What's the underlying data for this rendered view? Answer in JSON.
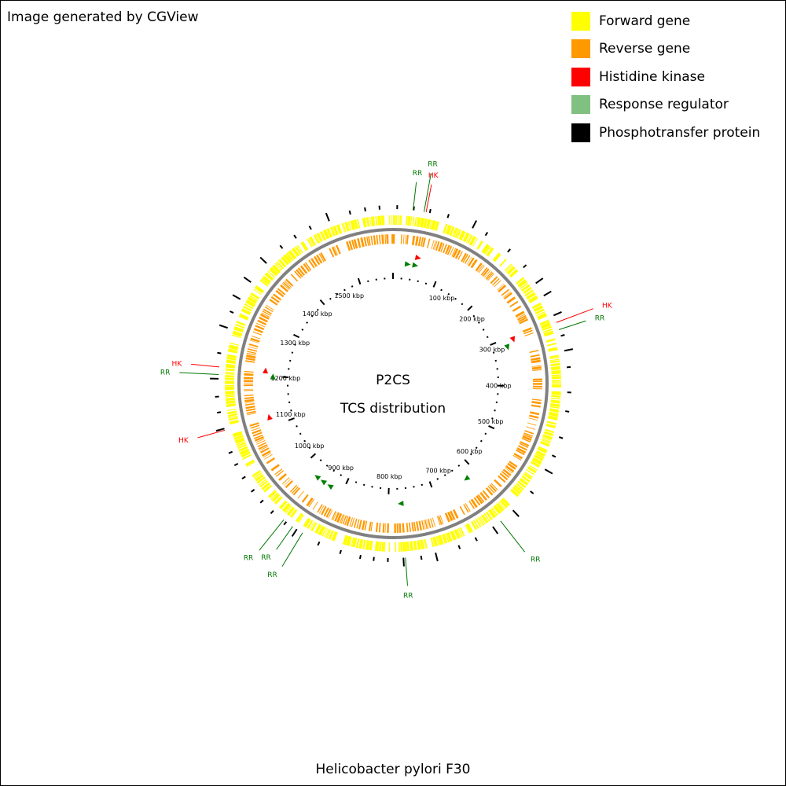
{
  "credit": "Image generated by CGView",
  "legend": [
    {
      "label": "Forward gene",
      "color": "#ffff00"
    },
    {
      "label": "Reverse gene",
      "color": "#ff9900"
    },
    {
      "label": "Histidine kinase",
      "color": "#ff0000"
    },
    {
      "label": "Response regulator",
      "color": "#80c080"
    },
    {
      "label": "Phosphotransfer protein",
      "color": "#000000"
    }
  ],
  "center": {
    "line1": "P2CS",
    "line2": "TCS distribution"
  },
  "organism": "Helicobacter pylori F30",
  "genome_length_kbp": 1580,
  "tick_labels": [
    {
      "kbp": 100,
      "text": "100 kbp"
    },
    {
      "kbp": 200,
      "text": "200 kbp"
    },
    {
      "kbp": 300,
      "text": "300 kbp"
    },
    {
      "kbp": 400,
      "text": "400 kbp"
    },
    {
      "kbp": 500,
      "text": "500 kbp"
    },
    {
      "kbp": 600,
      "text": "600 kbp"
    },
    {
      "kbp": 700,
      "text": "700 kbp"
    },
    {
      "kbp": 800,
      "text": "800 kbp"
    },
    {
      "kbp": 900,
      "text": "900 kbp"
    },
    {
      "kbp": 1000,
      "text": "1000 kbp"
    },
    {
      "kbp": 1100,
      "text": "1100 kbp"
    },
    {
      "kbp": 1200,
      "text": "1200 kbp"
    },
    {
      "kbp": 1300,
      "text": "1300 kbp"
    },
    {
      "kbp": 1400,
      "text": "1400 kbp"
    },
    {
      "kbp": 1500,
      "text": "1500 kbp"
    }
  ],
  "tcs_features": [
    {
      "label": "RR",
      "type": "rr",
      "kbp": 29
    },
    {
      "label": "RR",
      "type": "rr",
      "kbp": 45
    },
    {
      "label": "HK",
      "type": "hk",
      "kbp": 48
    },
    {
      "label": "HK",
      "type": "hk",
      "kbp": 305
    },
    {
      "label": "RR",
      "type": "rr",
      "kbp": 316
    },
    {
      "label": "RR",
      "type": "rr",
      "kbp": 623
    },
    {
      "label": "RR",
      "type": "rr",
      "kbp": 772
    },
    {
      "label": "RR",
      "type": "rr",
      "kbp": 927
    },
    {
      "label": "RR",
      "type": "rr",
      "kbp": 944
    },
    {
      "label": "RR",
      "type": "rr",
      "kbp": 960
    },
    {
      "label": "HK",
      "type": "hk",
      "kbp": 1117
    },
    {
      "label": "RR",
      "type": "rr",
      "kbp": 1198
    },
    {
      "label": "HK",
      "type": "hk",
      "kbp": 1209
    }
  ],
  "hk_color": "#ff0000",
  "rr_label_color": "#007700",
  "rr_marker_color": "#008000",
  "backbone_color": "#808080"
}
